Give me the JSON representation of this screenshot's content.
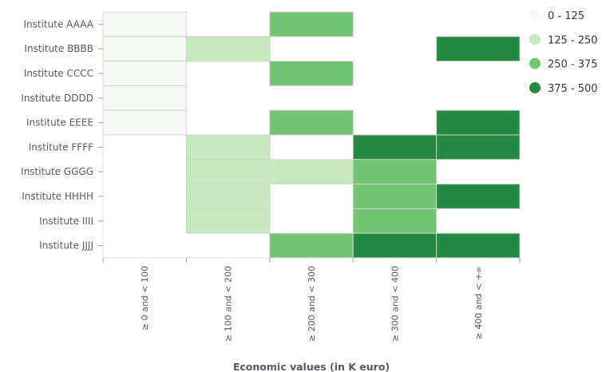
{
  "chart_data": {
    "type": "heatmap",
    "title": "",
    "xlabel": "Economic values (in K euro)",
    "ylabel": "",
    "x_categories": [
      "≥ 0 and < 100",
      "≥ 100 and < 200",
      "≥ 200 and < 300",
      "≥ 300 and < 400",
      "≥ 400 and < +∞"
    ],
    "y_categories": [
      "Institute AAAA",
      "Institute BBBB",
      "Institute CCCC",
      "Institute DDDD",
      "Institute EEEE",
      "Institute FFFF",
      "Institute GGGG",
      "Institute HHHH",
      "Institute IIII",
      "Institute JJJJ"
    ],
    "cells": [
      {
        "y": "Institute AAAA",
        "x": "≥ 0 and < 100",
        "range": "0 - 125"
      },
      {
        "y": "Institute AAAA",
        "x": "≥ 200 and < 300",
        "range": "250 - 375"
      },
      {
        "y": "Institute BBBB",
        "x": "≥ 0 and < 100",
        "range": "0 - 125"
      },
      {
        "y": "Institute BBBB",
        "x": "≥ 100 and < 200",
        "range": "125 - 250"
      },
      {
        "y": "Institute BBBB",
        "x": "≥ 400 and < +∞",
        "range": "375 - 500"
      },
      {
        "y": "Institute CCCC",
        "x": "≥ 0 and < 100",
        "range": "0 - 125"
      },
      {
        "y": "Institute CCCC",
        "x": "≥ 200 and < 300",
        "range": "250 - 375"
      },
      {
        "y": "Institute DDDD",
        "x": "≥ 0 and < 100",
        "range": "0 - 125"
      },
      {
        "y": "Institute EEEE",
        "x": "≥ 0 and < 100",
        "range": "0 - 125"
      },
      {
        "y": "Institute EEEE",
        "x": "≥ 200 and < 300",
        "range": "250 - 375"
      },
      {
        "y": "Institute EEEE",
        "x": "≥ 400 and < +∞",
        "range": "375 - 500"
      },
      {
        "y": "Institute FFFF",
        "x": "≥ 100 and < 200",
        "range": "125 - 250"
      },
      {
        "y": "Institute FFFF",
        "x": "≥ 300 and < 400",
        "range": "375 - 500"
      },
      {
        "y": "Institute FFFF",
        "x": "≥ 400 and < +∞",
        "range": "375 - 500"
      },
      {
        "y": "Institute GGGG",
        "x": "≥ 100 and < 200",
        "range": "125 - 250"
      },
      {
        "y": "Institute GGGG",
        "x": "≥ 200 and < 300",
        "range": "125 - 250"
      },
      {
        "y": "Institute GGGG",
        "x": "≥ 300 and < 400",
        "range": "250 - 375"
      },
      {
        "y": "Institute HHHH",
        "x": "≥ 100 and < 200",
        "range": "125 - 250"
      },
      {
        "y": "Institute HHHH",
        "x": "≥ 300 and < 400",
        "range": "250 - 375"
      },
      {
        "y": "Institute HHHH",
        "x": "≥ 400 and < +∞",
        "range": "375 - 500"
      },
      {
        "y": "Institute IIII",
        "x": "≥ 100 and < 200",
        "range": "125 - 250"
      },
      {
        "y": "Institute IIII",
        "x": "≥ 300 and < 400",
        "range": "250 - 375"
      },
      {
        "y": "Institute JJJJ",
        "x": "≥ 200 and < 300",
        "range": "250 - 375"
      },
      {
        "y": "Institute JJJJ",
        "x": "≥ 300 and < 400",
        "range": "375 - 500"
      },
      {
        "y": "Institute JJJJ",
        "x": "≥ 400 and < +∞",
        "range": "375 - 500"
      }
    ],
    "legend": {
      "placement": "top-right",
      "items": [
        {
          "label": "0 - 125",
          "color": "#f5fbf2"
        },
        {
          "label": "125 - 250",
          "color": "#c6e9bf"
        },
        {
          "label": "250 - 375",
          "color": "#74c476"
        },
        {
          "label": "375 - 500",
          "color": "#248a42"
        }
      ]
    },
    "grid": false
  }
}
